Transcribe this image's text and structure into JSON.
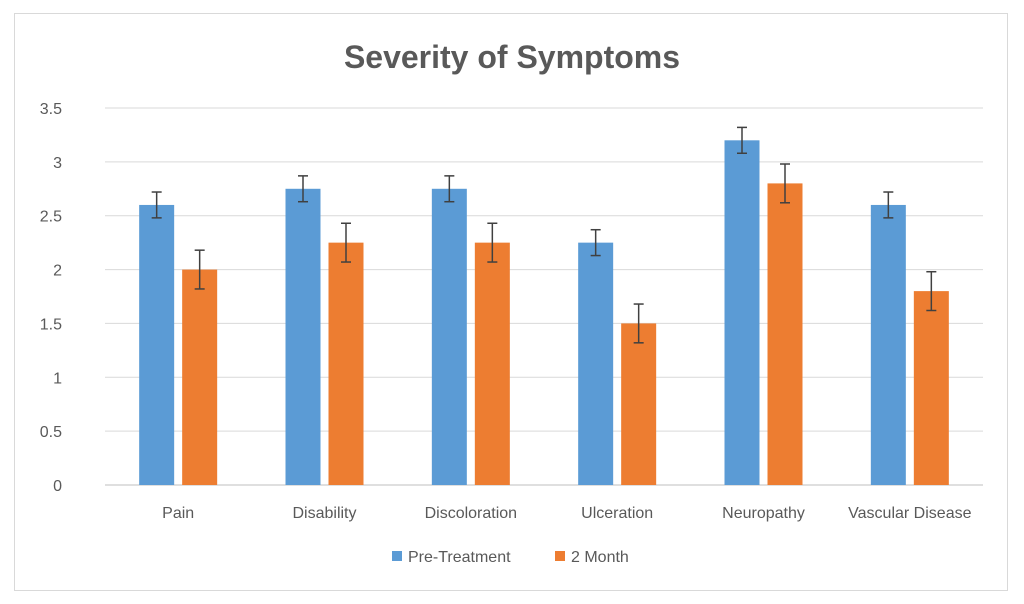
{
  "chart_data": {
    "type": "bar",
    "title": "Severity of Symptoms",
    "categories": [
      "Pain",
      "Disability",
      "Discoloration",
      "Ulceration",
      "Neuropathy",
      "Vascular Disease"
    ],
    "series": [
      {
        "name": "Pre-Treatment",
        "color": "#5b9bd5",
        "values": [
          2.6,
          2.75,
          2.75,
          2.25,
          3.2,
          2.6
        ],
        "error": [
          0.12,
          0.12,
          0.12,
          0.12,
          0.12,
          0.12
        ]
      },
      {
        "name": "2 Month",
        "color": "#ed7d31",
        "values": [
          2.0,
          2.25,
          2.25,
          1.5,
          2.8,
          1.8
        ],
        "error": [
          0.18,
          0.18,
          0.18,
          0.18,
          0.18,
          0.18
        ]
      }
    ],
    "ylim": [
      0,
      3.5
    ],
    "yticks": [
      "0",
      "0.5",
      "1",
      "1.5",
      "2",
      "2.5",
      "3",
      "3.5"
    ],
    "grid": true,
    "legend": "bottom",
    "xlabel": "",
    "ylabel": ""
  }
}
